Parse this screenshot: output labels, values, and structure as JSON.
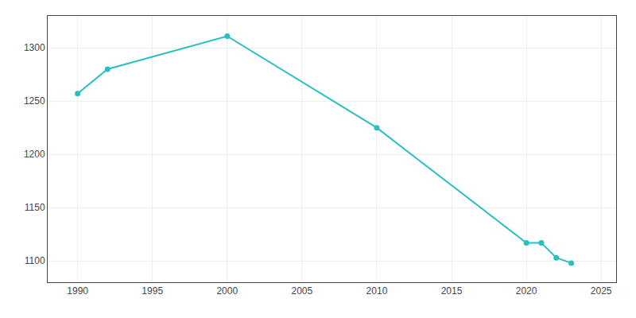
{
  "chart_data": {
    "type": "line",
    "x": [
      1990,
      1992,
      2000,
      2010,
      2020,
      2021,
      2022,
      2023
    ],
    "values": [
      1257,
      1280,
      1311,
      1225,
      1117,
      1117,
      1103,
      1098
    ],
    "color": "#2abfbf",
    "marker": "circle",
    "line_style": "solid",
    "xlim": [
      1988,
      2026
    ],
    "ylim": [
      1080,
      1330
    ],
    "xticks": [
      1990,
      1995,
      2000,
      2005,
      2010,
      2015,
      2020,
      2025
    ],
    "yticks": [
      1100,
      1150,
      1200,
      1250,
      1300
    ],
    "grid": true
  }
}
